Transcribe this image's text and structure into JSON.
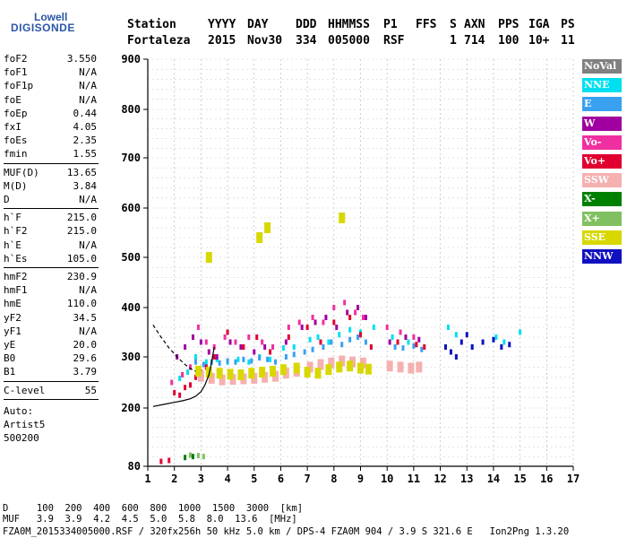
{
  "logo": {
    "line1": "Lowell",
    "line2": "DIGISONDE"
  },
  "header": {
    "labels": [
      "Station",
      "YYYY",
      "DAY",
      "DDD",
      "HHMMSS",
      "P1",
      "FFS",
      "S",
      "AXN",
      "PPS",
      "IGA",
      "PS"
    ],
    "values": [
      "Fortaleza",
      "2015",
      "Nov30",
      "334",
      "005000",
      "RSF",
      "1",
      "714",
      "100",
      "10+",
      "11"
    ]
  },
  "params": {
    "group1": [
      {
        "name": "foF2",
        "value": "3.550"
      },
      {
        "name": "foF1",
        "value": "N/A"
      },
      {
        "name": "foF1p",
        "value": "N/A"
      },
      {
        "name": "foE",
        "value": "N/A"
      },
      {
        "name": "foEp",
        "value": "0.44"
      },
      {
        "name": "fxI",
        "value": "4.05"
      },
      {
        "name": "foEs",
        "value": "2.35"
      },
      {
        "name": "fmin",
        "value": "1.55"
      }
    ],
    "group2": [
      {
        "name": "MUF(D)",
        "value": "13.65"
      },
      {
        "name": "M(D)",
        "value": "3.84"
      },
      {
        "name": "D",
        "value": "N/A"
      }
    ],
    "group3": [
      {
        "name": "h`F",
        "value": "215.0"
      },
      {
        "name": "h`F2",
        "value": "215.0"
      },
      {
        "name": "h`E",
        "value": "N/A"
      },
      {
        "name": "h`Es",
        "value": "105.0"
      }
    ],
    "group4": [
      {
        "name": "hmF2",
        "value": "230.9"
      },
      {
        "name": "hmF1",
        "value": "N/A"
      },
      {
        "name": "hmE",
        "value": "110.0"
      },
      {
        "name": "yF2",
        "value": "34.5"
      },
      {
        "name": "yF1",
        "value": "N/A"
      },
      {
        "name": "yE",
        "value": "20.0"
      },
      {
        "name": "B0",
        "value": "29.6"
      },
      {
        "name": "B1",
        "value": "3.79"
      }
    ],
    "clevel": {
      "name": "C-level",
      "value": "55"
    },
    "autoscale": [
      "Auto:",
      "Artist5",
      "500200"
    ]
  },
  "legend": [
    {
      "label": "NoVal",
      "color": "#808080"
    },
    {
      "label": "NNE",
      "color": "#00e0f0"
    },
    {
      "label": "E",
      "color": "#3aa0f0"
    },
    {
      "label": "W",
      "color": "#a000a0"
    },
    {
      "label": "Vo-",
      "color": "#f030a0"
    },
    {
      "label": "Vo+",
      "color": "#e00030"
    },
    {
      "label": "SSW",
      "color": "#f5b0b0"
    },
    {
      "label": "X-",
      "color": "#008000"
    },
    {
      "label": "X+",
      "color": "#80c060"
    },
    {
      "label": "SSE",
      "color": "#d8d800"
    },
    {
      "label": "NNW",
      "color": "#1010c0"
    }
  ],
  "bottom": {
    "line1": "D     100  200  400  600  800  1000  1500  3000  [km]",
    "line2": "MUF   3.9  3.9  4.2  4.5  5.0  5.8  8.0  13.6  [MHz]",
    "line3": "FZA0M_2015334005000.RSF / 320fx256h 50 kHz 5.0 km / DPS-4 FZA0M 904 / 3.9 S 321.6 E   Ion2Png 1.3.20"
  },
  "chart_data": {
    "type": "scatter",
    "xlim": [
      1,
      17
    ],
    "ylim": [
      80,
      900
    ],
    "xticks": [
      1,
      2,
      3,
      4,
      5,
      6,
      7,
      8,
      9,
      10,
      11,
      12,
      13,
      14,
      15,
      16,
      17
    ],
    "yticks": [
      80,
      200,
      300,
      400,
      500,
      600,
      700,
      800,
      900
    ],
    "grid": true,
    "legend_position": "right",
    "series": [
      {
        "name": "NoVal",
        "x": [],
        "y": []
      },
      {
        "name": "NNE",
        "x": [
          2.2,
          2.5,
          2.8,
          3.2,
          3.6,
          4.0,
          4.4,
          4.8,
          5.2,
          5.6,
          6.1,
          6.5,
          7.1,
          7.4,
          7.8,
          8.2,
          8.6,
          9.0,
          9.5,
          10.2,
          10.8,
          12.3,
          12.6,
          13.2,
          14.1,
          14.4,
          15.0
        ],
        "y": [
          258,
          270,
          300,
          290,
          295,
          290,
          295,
          290,
          300,
          295,
          318,
          320,
          335,
          340,
          330,
          345,
          355,
          350,
          360,
          340,
          330,
          360,
          345,
          320,
          340,
          330,
          350
        ]
      },
      {
        "name": "E",
        "x": [
          2.8,
          3.1,
          3.4,
          3.7,
          4.0,
          4.3,
          4.6,
          4.9,
          5.2,
          5.5,
          5.8,
          6.2,
          6.5,
          6.9,
          7.2,
          7.6,
          7.9,
          8.3,
          8.6,
          8.9,
          9.2,
          10.3,
          10.6,
          11.0,
          11.3
        ],
        "y": [
          290,
          285,
          290,
          288,
          292,
          290,
          295,
          292,
          298,
          295,
          290,
          300,
          305,
          310,
          315,
          320,
          330,
          325,
          335,
          340,
          330,
          320,
          318,
          322,
          315
        ]
      },
      {
        "name": "W",
        "x": [
          2.1,
          2.4,
          2.7,
          3.0,
          3.3,
          3.6,
          4.1,
          4.5,
          5.0,
          5.4,
          6.2,
          6.8,
          7.3,
          7.7,
          8.1,
          8.5,
          8.9,
          9.2,
          10.1,
          10.7,
          11.2
        ],
        "y": [
          300,
          320,
          340,
          330,
          310,
          300,
          330,
          320,
          310,
          320,
          330,
          360,
          370,
          380,
          360,
          390,
          400,
          380,
          330,
          340,
          335
        ]
      },
      {
        "name": "Vo-",
        "x": [
          1.9,
          2.3,
          2.6,
          2.9,
          3.2,
          3.5,
          3.9,
          4.3,
          4.8,
          5.3,
          5.7,
          6.3,
          6.7,
          7.2,
          7.6,
          8.0,
          8.4,
          8.8,
          9.1,
          10.0,
          10.5,
          11.0
        ],
        "y": [
          250,
          265,
          280,
          360,
          330,
          320,
          340,
          330,
          340,
          330,
          320,
          360,
          370,
          380,
          370,
          400,
          410,
          390,
          380,
          360,
          350,
          340
        ]
      },
      {
        "name": "Vo+",
        "x": [
          1.5,
          1.8,
          2.0,
          2.2,
          2.4,
          2.6,
          2.8,
          3.0,
          3.2,
          3.5,
          4.0,
          4.6,
          5.1,
          5.6,
          6.3,
          7.0,
          7.5,
          8.0,
          8.6,
          9.0,
          9.4,
          10.4,
          11.1,
          11.4
        ],
        "y": [
          90,
          92,
          230,
          225,
          240,
          245,
          260,
          270,
          280,
          300,
          350,
          320,
          340,
          310,
          340,
          360,
          330,
          370,
          380,
          345,
          320,
          330,
          325,
          320
        ]
      },
      {
        "name": "SSW",
        "x": [
          3.0,
          3.4,
          3.8,
          4.2,
          4.6,
          5.0,
          5.4,
          5.8,
          6.2,
          6.6,
          7.1,
          7.5,
          7.9,
          8.3,
          8.7,
          9.1,
          10.1,
          10.5,
          10.9,
          11.2
        ],
        "y": [
          262,
          258,
          255,
          256,
          257,
          258,
          260,
          262,
          268,
          272,
          280,
          285,
          288,
          292,
          290,
          288,
          282,
          280,
          278,
          280
        ]
      },
      {
        "name": "X-",
        "x": [
          2.4,
          2.7
        ],
        "y": [
          98,
          100
        ]
      },
      {
        "name": "X+",
        "x": [
          2.6,
          2.9,
          3.1
        ],
        "y": [
          103,
          102,
          100
        ]
      },
      {
        "name": "SSE",
        "x": [
          2.9,
          3.3,
          3.7,
          4.1,
          4.5,
          4.9,
          5.3,
          5.7,
          6.1,
          6.6,
          7.0,
          7.4,
          7.8,
          8.2,
          8.6,
          9.0,
          9.3,
          3.3,
          5.5,
          5.2,
          8.3
        ],
        "y": [
          272,
          270,
          268,
          266,
          265,
          268,
          270,
          272,
          275,
          278,
          270,
          268,
          275,
          280,
          282,
          278,
          276,
          500,
          560,
          540,
          580
        ]
      },
      {
        "name": "NNW",
        "x": [
          12.2,
          12.4,
          12.6,
          12.8,
          13.0,
          13.2,
          13.6,
          14.0,
          14.3,
          14.6
        ],
        "y": [
          320,
          310,
          300,
          330,
          345,
          320,
          330,
          335,
          320,
          325
        ]
      }
    ],
    "curve": {
      "x": [
        1.2,
        1.6,
        2.0,
        2.3,
        2.6,
        2.8,
        3.0,
        3.15,
        3.3,
        3.4,
        3.5
      ],
      "y": [
        203,
        207,
        211,
        214,
        218,
        223,
        232,
        245,
        265,
        290,
        320
      ]
    },
    "curve_upper": {
      "x": [
        1.2,
        1.5,
        1.8,
        2.1,
        2.4,
        2.6,
        2.8
      ],
      "y": [
        365,
        340,
        318,
        300,
        285,
        277,
        272
      ]
    }
  }
}
